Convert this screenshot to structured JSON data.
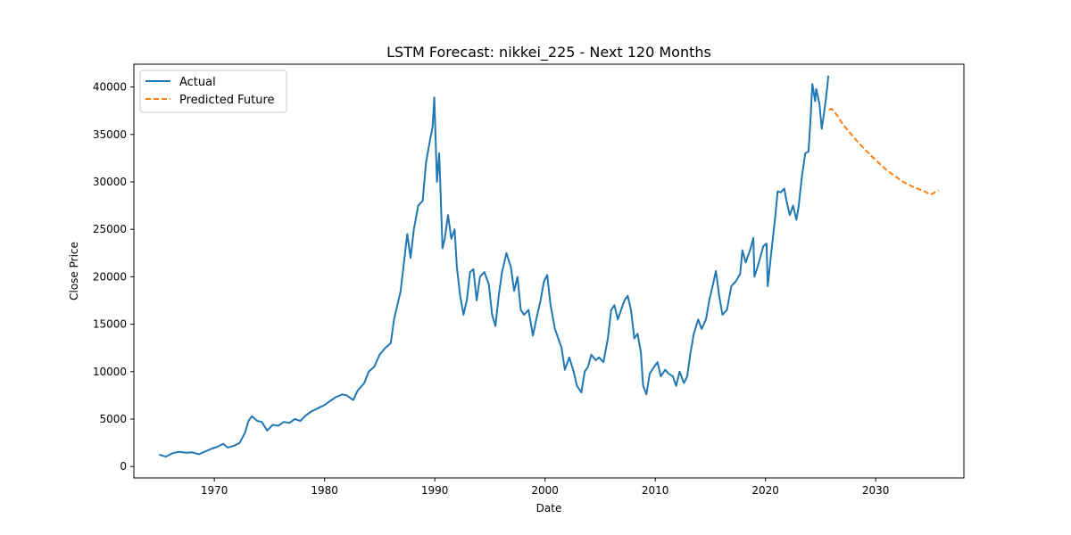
{
  "chart_data": {
    "type": "line",
    "title": "LSTM Forecast: nikkei_225 - Next 120 Months",
    "xlabel": "Date",
    "ylabel": "Close Price",
    "xlim": [
      1962.7,
      2038.0
    ],
    "ylim": [
      -1200,
      42400
    ],
    "x_ticks": [
      1970,
      1980,
      1990,
      2000,
      2010,
      2020,
      2030
    ],
    "y_ticks": [
      0,
      5000,
      10000,
      15000,
      20000,
      25000,
      30000,
      35000,
      40000
    ],
    "grid": false,
    "legend_position": "top-left",
    "series": [
      {
        "name": "Actual",
        "color": "#1f77b4",
        "style": "solid",
        "points": [
          [
            1965.0,
            1250
          ],
          [
            1965.6,
            1050
          ],
          [
            1966.2,
            1400
          ],
          [
            1966.8,
            1550
          ],
          [
            1967.5,
            1450
          ],
          [
            1968.0,
            1500
          ],
          [
            1968.6,
            1300
          ],
          [
            1969.2,
            1600
          ],
          [
            1969.8,
            1900
          ],
          [
            1970.3,
            2100
          ],
          [
            1970.8,
            2400
          ],
          [
            1971.2,
            2000
          ],
          [
            1971.8,
            2200
          ],
          [
            1972.3,
            2500
          ],
          [
            1972.8,
            3600
          ],
          [
            1973.1,
            4800
          ],
          [
            1973.4,
            5300
          ],
          [
            1973.9,
            4800
          ],
          [
            1974.3,
            4700
          ],
          [
            1974.8,
            3800
          ],
          [
            1975.3,
            4400
          ],
          [
            1975.8,
            4300
          ],
          [
            1976.3,
            4700
          ],
          [
            1976.8,
            4600
          ],
          [
            1977.3,
            5000
          ],
          [
            1977.8,
            4800
          ],
          [
            1978.3,
            5400
          ],
          [
            1978.8,
            5800
          ],
          [
            1979.5,
            6200
          ],
          [
            1980.0,
            6500
          ],
          [
            1980.5,
            6900
          ],
          [
            1981.0,
            7300
          ],
          [
            1981.6,
            7600
          ],
          [
            1982.0,
            7500
          ],
          [
            1982.6,
            7000
          ],
          [
            1983.0,
            8000
          ],
          [
            1983.6,
            8800
          ],
          [
            1984.0,
            10000
          ],
          [
            1984.5,
            10500
          ],
          [
            1985.0,
            11800
          ],
          [
            1985.5,
            12500
          ],
          [
            1986.0,
            13000
          ],
          [
            1986.3,
            15500
          ],
          [
            1986.6,
            17000
          ],
          [
            1986.9,
            18500
          ],
          [
            1987.2,
            21500
          ],
          [
            1987.5,
            24500
          ],
          [
            1987.8,
            22000
          ],
          [
            1988.1,
            25000
          ],
          [
            1988.5,
            27500
          ],
          [
            1988.9,
            28000
          ],
          [
            1989.2,
            32000
          ],
          [
            1989.5,
            34000
          ],
          [
            1989.8,
            35800
          ],
          [
            1989.95,
            38900
          ],
          [
            1990.2,
            30000
          ],
          [
            1990.4,
            33000
          ],
          [
            1990.7,
            23000
          ],
          [
            1990.9,
            24000
          ],
          [
            1991.2,
            26500
          ],
          [
            1991.5,
            24000
          ],
          [
            1991.8,
            25000
          ],
          [
            1992.0,
            21000
          ],
          [
            1992.3,
            18000
          ],
          [
            1992.6,
            16000
          ],
          [
            1992.9,
            17500
          ],
          [
            1993.2,
            20500
          ],
          [
            1993.5,
            20800
          ],
          [
            1993.8,
            17500
          ],
          [
            1994.1,
            20000
          ],
          [
            1994.5,
            20500
          ],
          [
            1994.9,
            19200
          ],
          [
            1995.2,
            16000
          ],
          [
            1995.5,
            14800
          ],
          [
            1995.8,
            18000
          ],
          [
            1996.1,
            20500
          ],
          [
            1996.5,
            22500
          ],
          [
            1996.9,
            21000
          ],
          [
            1997.2,
            18500
          ],
          [
            1997.5,
            20000
          ],
          [
            1997.8,
            16500
          ],
          [
            1998.1,
            16000
          ],
          [
            1998.5,
            16500
          ],
          [
            1998.9,
            13800
          ],
          [
            1999.2,
            15500
          ],
          [
            1999.6,
            17500
          ],
          [
            1999.9,
            19500
          ],
          [
            2000.2,
            20200
          ],
          [
            2000.5,
            17000
          ],
          [
            2000.9,
            14500
          ],
          [
            2001.2,
            13500
          ],
          [
            2001.5,
            12500
          ],
          [
            2001.8,
            10200
          ],
          [
            2002.2,
            11500
          ],
          [
            2002.6,
            10000
          ],
          [
            2002.9,
            8500
          ],
          [
            2003.3,
            7800
          ],
          [
            2003.6,
            10000
          ],
          [
            2003.9,
            10500
          ],
          [
            2004.2,
            11800
          ],
          [
            2004.6,
            11200
          ],
          [
            2004.9,
            11500
          ],
          [
            2005.3,
            11000
          ],
          [
            2005.7,
            13500
          ],
          [
            2006.0,
            16500
          ],
          [
            2006.3,
            17000
          ],
          [
            2006.6,
            15500
          ],
          [
            2006.9,
            16500
          ],
          [
            2007.2,
            17500
          ],
          [
            2007.5,
            18000
          ],
          [
            2007.8,
            16500
          ],
          [
            2008.1,
            13500
          ],
          [
            2008.4,
            14000
          ],
          [
            2008.7,
            12000
          ],
          [
            2008.9,
            8500
          ],
          [
            2009.2,
            7600
          ],
          [
            2009.5,
            9800
          ],
          [
            2009.9,
            10500
          ],
          [
            2010.2,
            11000
          ],
          [
            2010.5,
            9500
          ],
          [
            2010.9,
            10200
          ],
          [
            2011.2,
            9800
          ],
          [
            2011.6,
            9500
          ],
          [
            2011.9,
            8500
          ],
          [
            2012.2,
            10000
          ],
          [
            2012.6,
            8800
          ],
          [
            2012.9,
            9500
          ],
          [
            2013.2,
            12000
          ],
          [
            2013.5,
            14000
          ],
          [
            2013.9,
            15500
          ],
          [
            2014.2,
            14500
          ],
          [
            2014.6,
            15500
          ],
          [
            2014.9,
            17500
          ],
          [
            2015.3,
            19500
          ],
          [
            2015.5,
            20600
          ],
          [
            2015.8,
            18000
          ],
          [
            2016.1,
            16000
          ],
          [
            2016.5,
            16500
          ],
          [
            2016.9,
            19000
          ],
          [
            2017.3,
            19500
          ],
          [
            2017.7,
            20300
          ],
          [
            2017.9,
            22800
          ],
          [
            2018.2,
            21500
          ],
          [
            2018.6,
            22800
          ],
          [
            2018.9,
            24100
          ],
          [
            2019.0,
            20000
          ],
          [
            2019.4,
            21500
          ],
          [
            2019.8,
            23200
          ],
          [
            2020.1,
            23500
          ],
          [
            2020.2,
            19000
          ],
          [
            2020.5,
            22300
          ],
          [
            2020.9,
            26500
          ],
          [
            2021.1,
            29000
          ],
          [
            2021.4,
            28900
          ],
          [
            2021.7,
            29300
          ],
          [
            2021.9,
            28000
          ],
          [
            2022.2,
            26500
          ],
          [
            2022.5,
            27500
          ],
          [
            2022.8,
            26000
          ],
          [
            2023.0,
            27300
          ],
          [
            2023.3,
            30500
          ],
          [
            2023.6,
            33000
          ],
          [
            2023.9,
            33200
          ],
          [
            2024.1,
            36800
          ],
          [
            2024.25,
            40300
          ],
          [
            2024.5,
            38500
          ],
          [
            2024.6,
            39800
          ],
          [
            2024.9,
            38200
          ],
          [
            2025.1,
            35600
          ],
          [
            2025.4,
            38000
          ],
          [
            2025.6,
            40000
          ],
          [
            2025.7,
            41200
          ]
        ]
      },
      {
        "name": "Predicted Future",
        "color": "#ff7f0e",
        "style": "dashed",
        "points": [
          [
            2025.75,
            37600
          ],
          [
            2026.0,
            37700
          ],
          [
            2026.5,
            37000
          ],
          [
            2027.0,
            36100
          ],
          [
            2027.5,
            35400
          ],
          [
            2028.0,
            34700
          ],
          [
            2028.5,
            34050
          ],
          [
            2029.0,
            33450
          ],
          [
            2029.5,
            32850
          ],
          [
            2030.0,
            32300
          ],
          [
            2030.5,
            31750
          ],
          [
            2031.0,
            31250
          ],
          [
            2031.5,
            30800
          ],
          [
            2032.0,
            30400
          ],
          [
            2032.5,
            30000
          ],
          [
            2033.0,
            29700
          ],
          [
            2033.5,
            29400
          ],
          [
            2034.0,
            29200
          ],
          [
            2034.5,
            28950
          ],
          [
            2035.0,
            28650
          ],
          [
            2035.7,
            29100
          ]
        ]
      }
    ]
  }
}
